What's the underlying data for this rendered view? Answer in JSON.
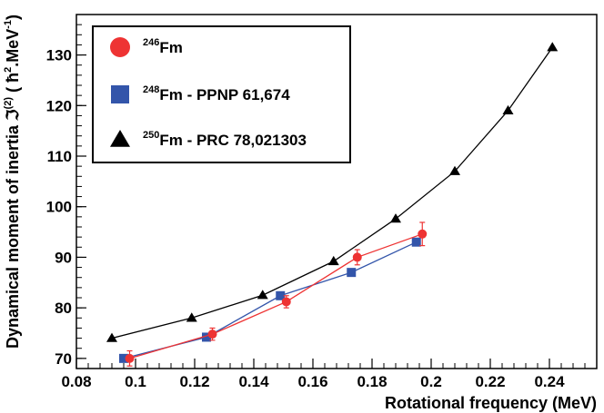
{
  "chart_data": {
    "type": "scatter",
    "xlabel": "Rotational frequency (MeV)",
    "ylabel": "Dynamical moment of inertia ℑ⁽²⁾ (ħ².MeV⁻¹)",
    "ylabel_parts": {
      "main": "Dynamical moment of inertia ℑ",
      "sup": "(2)",
      "unit_open": " ( ħ",
      "unit_sup1": "2",
      "unit_mid": ".MeV",
      "unit_sup2": "-1",
      "unit_close": ")"
    },
    "xlim": [
      0.08,
      0.256
    ],
    "ylim": [
      68,
      138
    ],
    "x_ticks": [
      0.08,
      0.1,
      0.12,
      0.14,
      0.16,
      0.18,
      0.2,
      0.22,
      0.24
    ],
    "x_tick_labels": [
      "0.08",
      "0.1",
      "0.12",
      "0.14",
      "0.16",
      "0.18",
      "0.2",
      "0.22",
      "0.24"
    ],
    "y_ticks": [
      70,
      80,
      90,
      100,
      110,
      120,
      130
    ],
    "y_tick_labels": [
      "70",
      "80",
      "90",
      "100",
      "110",
      "120",
      "130"
    ],
    "grid": false,
    "legend_position": "top-left",
    "series": [
      {
        "name": "246Fm",
        "label_sup": "246",
        "label_main": "Fm",
        "marker": "circle",
        "color": "#ee3333",
        "x": [
          0.098,
          0.126,
          0.151,
          0.175,
          0.197
        ],
        "y": [
          70.0,
          74.8,
          81.2,
          90.0,
          94.6
        ],
        "yerr": [
          1.5,
          1.2,
          1.2,
          1.5,
          2.3
        ]
      },
      {
        "name": "248Fm - PPNP 61,674",
        "label_sup": "248",
        "label_main": "Fm - PPNP 61,674",
        "marker": "square",
        "color": "#3355aa",
        "x": [
          0.096,
          0.124,
          0.149,
          0.173,
          0.195
        ],
        "y": [
          70.0,
          74.2,
          82.4,
          87.0,
          93.0
        ]
      },
      {
        "name": "250Fm - PRC 78,021303",
        "label_sup": "250",
        "label_main": "Fm - PRC 78,021303",
        "marker": "triangle",
        "color": "#000000",
        "x": [
          0.092,
          0.119,
          0.143,
          0.167,
          0.188,
          0.208,
          0.226,
          0.241
        ],
        "y": [
          74.0,
          78.0,
          82.5,
          89.2,
          97.6,
          107.0,
          119.0,
          131.5
        ]
      }
    ]
  }
}
